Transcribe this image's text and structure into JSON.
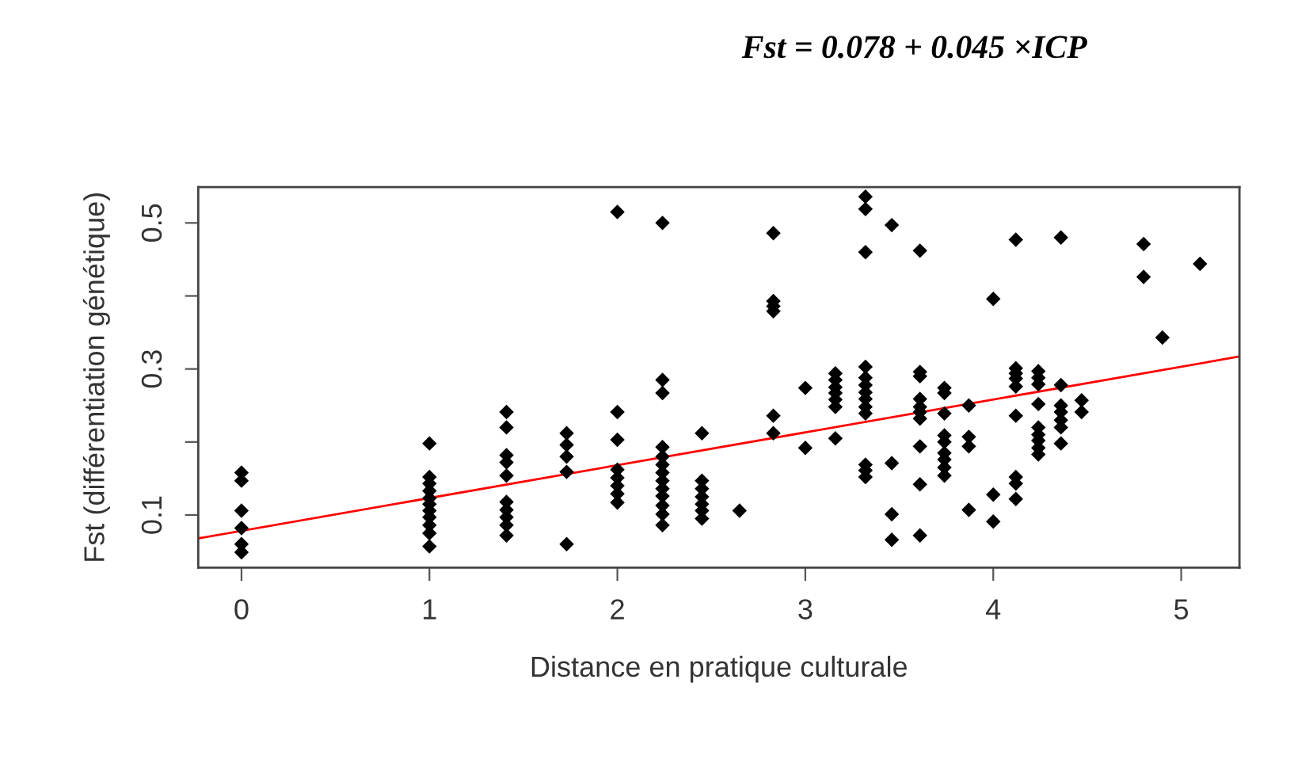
{
  "chart_data": {
    "type": "scatter",
    "annotations": [
      "Fst = 0.078 + 0.045 ×ICP"
    ],
    "xlabel": "Distance en pratique culturale",
    "ylabel": "Fst (différentiation génétique)",
    "series": [
      {
        "color": "#000000",
        "marker": "diamond",
        "x": [
          0,
          0,
          0,
          0,
          0,
          0,
          1,
          1,
          1,
          1,
          1,
          1,
          1,
          1,
          1,
          1,
          1,
          1.41,
          1.41,
          1.41,
          1.41,
          1.41,
          1.41,
          1.41,
          1.41,
          1.41,
          1.41,
          1.73,
          1.73,
          1.73,
          1.73,
          1.73,
          2,
          2,
          2,
          2,
          2,
          2,
          2,
          2,
          2.24,
          2.24,
          2.24,
          2.24,
          2.24,
          2.24,
          2.24,
          2.24,
          2.24,
          2.24,
          2.24,
          2.24,
          2.24,
          2.45,
          2.45,
          2.45,
          2.45,
          2.45,
          2.45,
          2.45,
          2.65,
          2.83,
          2.83,
          2.83,
          2.83,
          2.83,
          2.83,
          3,
          3,
          3.16,
          3.16,
          3.16,
          3.16,
          3.16,
          3.16,
          3.16,
          3.32,
          3.32,
          3.32,
          3.32,
          3.32,
          3.32,
          3.32,
          3.32,
          3.32,
          3.32,
          3.32,
          3.32,
          3.32,
          3.46,
          3.46,
          3.46,
          3.46,
          3.61,
          3.61,
          3.61,
          3.61,
          3.61,
          3.61,
          3.61,
          3.61,
          3.61,
          3.61,
          3.74,
          3.74,
          3.74,
          3.74,
          3.74,
          3.74,
          3.74,
          3.74,
          3.74,
          3.87,
          3.87,
          3.87,
          3.87,
          4,
          4,
          4,
          4.12,
          4.12,
          4.12,
          4.12,
          4.12,
          4.12,
          4.12,
          4.12,
          4.12,
          4.24,
          4.24,
          4.24,
          4.24,
          4.24,
          4.24,
          4.24,
          4.24,
          4.24,
          4.36,
          4.36,
          4.36,
          4.36,
          4.36,
          4.36,
          4.36,
          4.47,
          4.47,
          4.8,
          4.8,
          4.9,
          5.1
        ],
        "values": [
          0.158,
          0.147,
          0.106,
          0.082,
          0.06,
          0.049,
          0.198,
          0.152,
          0.143,
          0.133,
          0.123,
          0.115,
          0.106,
          0.097,
          0.086,
          0.075,
          0.057,
          0.241,
          0.22,
          0.182,
          0.172,
          0.154,
          0.118,
          0.107,
          0.097,
          0.086,
          0.072,
          0.212,
          0.196,
          0.18,
          0.159,
          0.06,
          0.515,
          0.241,
          0.203,
          0.162,
          0.151,
          0.14,
          0.129,
          0.117,
          0.5,
          0.285,
          0.267,
          0.193,
          0.18,
          0.169,
          0.158,
          0.147,
          0.136,
          0.126,
          0.113,
          0.101,
          0.086,
          0.212,
          0.147,
          0.136,
          0.125,
          0.115,
          0.106,
          0.095,
          0.106,
          0.486,
          0.393,
          0.386,
          0.379,
          0.236,
          0.212,
          0.274,
          0.192,
          0.294,
          0.285,
          0.275,
          0.267,
          0.258,
          0.248,
          0.205,
          0.536,
          0.519,
          0.46,
          0.303,
          0.288,
          0.278,
          0.268,
          0.259,
          0.248,
          0.239,
          0.169,
          0.161,
          0.152,
          0.497,
          0.171,
          0.101,
          0.066,
          0.462,
          0.296,
          0.29,
          0.259,
          0.248,
          0.241,
          0.232,
          0.194,
          0.142,
          0.072,
          0.274,
          0.267,
          0.239,
          0.209,
          0.2,
          0.185,
          0.176,
          0.165,
          0.154,
          0.25,
          0.207,
          0.194,
          0.107,
          0.396,
          0.128,
          0.091,
          0.477,
          0.301,
          0.294,
          0.287,
          0.276,
          0.236,
          0.152,
          0.143,
          0.122,
          0.297,
          0.288,
          0.279,
          0.252,
          0.22,
          0.21,
          0.202,
          0.192,
          0.183,
          0.48,
          0.278,
          0.25,
          0.241,
          0.23,
          0.22,
          0.198,
          0.257,
          0.241,
          0.471,
          0.426,
          0.343,
          0.444
        ]
      },
      {
        "type": "line",
        "color": "#ff0000",
        "line_style": "solid",
        "x": [
          -0.23,
          5.31
        ],
        "values": [
          0.068,
          0.317
        ]
      }
    ],
    "xlim": [
      -0.23,
      5.31
    ],
    "xticks": [
      0,
      1,
      2,
      3,
      4,
      5
    ],
    "ylim": [
      0.028,
      0.549
    ],
    "yticks": [
      0.1,
      {
        "value": 0.2,
        "label": null
      },
      0.3,
      {
        "value": 0.4,
        "label": null
      },
      0.5
    ],
    "grid": false,
    "legend": false
  }
}
